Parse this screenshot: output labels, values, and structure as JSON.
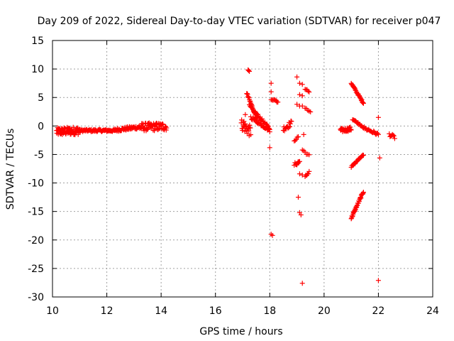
{
  "chart_data": {
    "type": "scatter",
    "title": "Day 209 of 2022, Sidereal Day-to-day VTEC variation (SDTVAR) for receiver p047",
    "xlabel": "GPS time / hours",
    "ylabel": "SDTVAR / TECUs",
    "xlim": [
      10,
      24
    ],
    "ylim": [
      -30,
      15
    ],
    "xticks": [
      10,
      12,
      14,
      16,
      18,
      20,
      22,
      24
    ],
    "yticks": [
      15,
      10,
      5,
      0,
      -5,
      -10,
      -15,
      -20,
      -25,
      -30
    ],
    "grid": true,
    "marker": "+",
    "color": "#ff0000",
    "segments": [
      {
        "x0": 10.15,
        "x1": 11.0,
        "y0": -1.0,
        "y1": -0.8,
        "spread": 1.4,
        "n": 80
      },
      {
        "x0": 11.0,
        "x1": 12.3,
        "y0": -0.8,
        "y1": -0.8,
        "spread": 0.4,
        "n": 70
      },
      {
        "x0": 12.3,
        "x1": 13.2,
        "y0": -0.7,
        "y1": -0.2,
        "spread": 0.6,
        "n": 50
      },
      {
        "x0": 13.2,
        "x1": 14.2,
        "y0": -0.2,
        "y1": -0.1,
        "spread": 1.4,
        "n": 70
      },
      {
        "x0": 16.95,
        "x1": 17.3,
        "y0": 0.3,
        "y1": -1.0,
        "spread": 2.0,
        "n": 25
      },
      {
        "x0": 17.15,
        "x1": 17.55,
        "y0": 5.8,
        "y1": 1.0,
        "spread": 0.4,
        "n": 25
      },
      {
        "x0": 17.25,
        "x1": 18.0,
        "y0": 3.5,
        "y1": -0.5,
        "spread": 0.5,
        "n": 30
      },
      {
        "x0": 17.3,
        "x1": 18.0,
        "y0": 1.5,
        "y1": -0.8,
        "spread": 0.5,
        "n": 25
      },
      {
        "x0": 17.2,
        "x1": 17.25,
        "y0": 9.8,
        "y1": 9.6,
        "spread": 0.2,
        "n": 3
      },
      {
        "x0": 18.05,
        "x1": 18.3,
        "y0": 4.8,
        "y1": 4.2,
        "spread": 0.4,
        "n": 8
      },
      {
        "x0": 18.5,
        "x1": 18.8,
        "y0": -0.5,
        "y1": 0.5,
        "spread": 1.0,
        "n": 15
      },
      {
        "x0": 18.9,
        "x1": 19.05,
        "y0": -2.5,
        "y1": -2.0,
        "spread": 0.4,
        "n": 5
      },
      {
        "x0": 18.9,
        "x1": 19.1,
        "y0": -6.8,
        "y1": -6.2,
        "spread": 0.6,
        "n": 8
      },
      {
        "x0": 19.2,
        "x1": 19.45,
        "y0": -4.2,
        "y1": -5.2,
        "spread": 0.4,
        "n": 6
      },
      {
        "x0": 19.3,
        "x1": 19.45,
        "y0": -9.0,
        "y1": -8.0,
        "spread": 0.5,
        "n": 6
      },
      {
        "x0": 19.3,
        "x1": 19.45,
        "y0": 6.5,
        "y1": 6.0,
        "spread": 0.4,
        "n": 5
      },
      {
        "x0": 19.3,
        "x1": 19.5,
        "y0": 3.0,
        "y1": 2.5,
        "spread": 0.4,
        "n": 5
      },
      {
        "x0": 20.6,
        "x1": 21.0,
        "y0": -0.8,
        "y1": -0.5,
        "spread": 0.7,
        "n": 25
      },
      {
        "x0": 21.0,
        "x1": 21.45,
        "y0": 7.5,
        "y1": 4.0,
        "spread": 0.3,
        "n": 30
      },
      {
        "x0": 21.05,
        "x1": 21.45,
        "y0": 1.2,
        "y1": -0.2,
        "spread": 0.3,
        "n": 15
      },
      {
        "x0": 21.0,
        "x1": 21.45,
        "y0": -7.2,
        "y1": -5.0,
        "spread": 0.3,
        "n": 20
      },
      {
        "x0": 21.0,
        "x1": 21.45,
        "y0": -16.2,
        "y1": -11.5,
        "spread": 0.4,
        "n": 35
      },
      {
        "x0": 21.45,
        "x1": 22.0,
        "y0": -0.3,
        "y1": -1.5,
        "spread": 0.5,
        "n": 20
      },
      {
        "x0": 22.4,
        "x1": 22.6,
        "y0": -1.5,
        "y1": -2.0,
        "spread": 0.6,
        "n": 8
      }
    ],
    "points": [
      [
        18.05,
        7.5
      ],
      [
        18.05,
        6.0
      ],
      [
        18.0,
        -3.8
      ],
      [
        18.05,
        -19.0
      ],
      [
        18.1,
        -19.2
      ],
      [
        19.0,
        8.6
      ],
      [
        19.1,
        7.5
      ],
      [
        19.2,
        7.3
      ],
      [
        19.1,
        5.5
      ],
      [
        19.2,
        5.3
      ],
      [
        19.0,
        3.8
      ],
      [
        19.1,
        3.5
      ],
      [
        19.2,
        3.5
      ],
      [
        19.25,
        -1.5
      ],
      [
        19.0,
        -6.8
      ],
      [
        19.05,
        -6.5
      ],
      [
        19.1,
        -8.4
      ],
      [
        19.2,
        -8.6
      ],
      [
        19.05,
        -12.5
      ],
      [
        19.1,
        -15.2
      ],
      [
        19.15,
        -15.6
      ],
      [
        19.2,
        -27.6
      ],
      [
        22.0,
        1.5
      ],
      [
        22.05,
        -5.6
      ],
      [
        22.0,
        -27.1
      ],
      [
        18.25,
        4.4
      ],
      [
        17.05,
        0.8
      ],
      [
        17.1,
        2.0
      ]
    ]
  }
}
